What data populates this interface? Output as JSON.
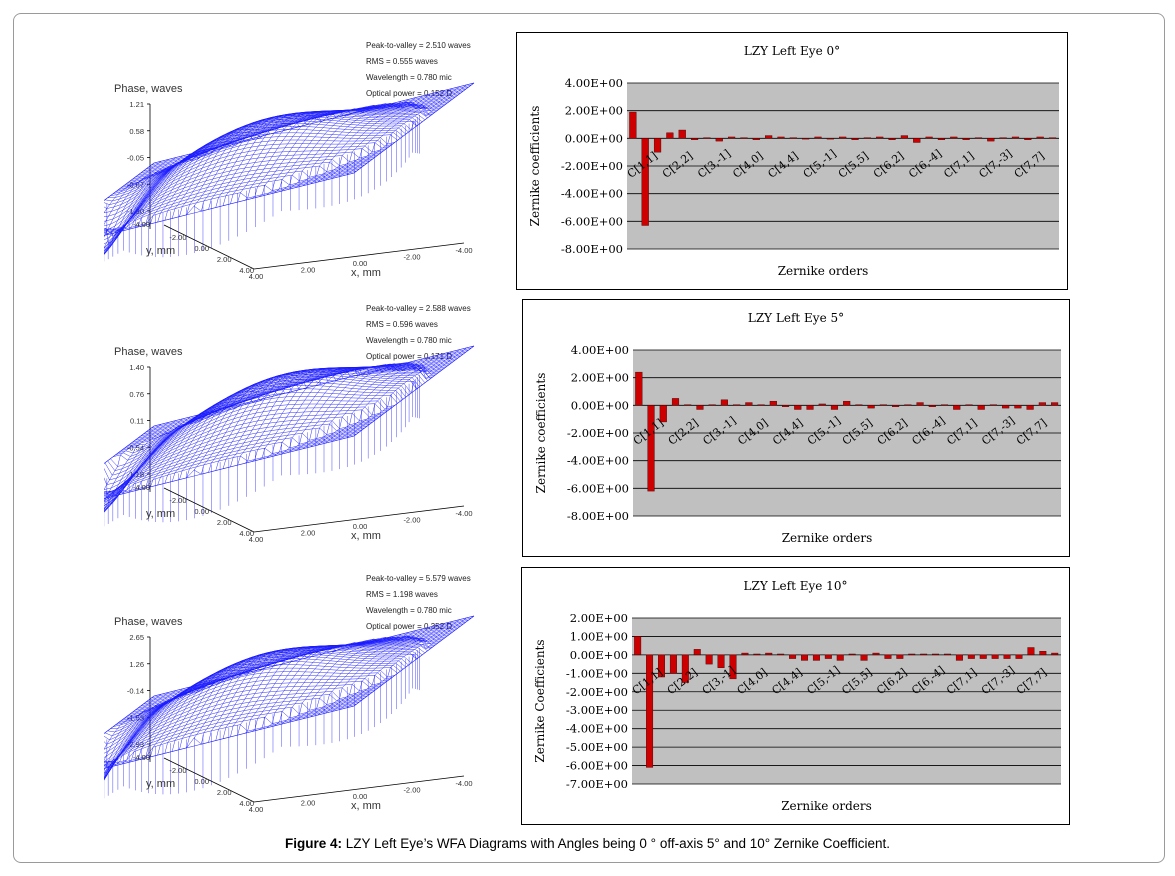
{
  "caption": {
    "label": "Figure 4:",
    "text": " LZY Left Eye’s WFA Diagrams with Angles being 0 ° off-axis 5° and 10° Zernike Coefficient."
  },
  "surfaces": [
    {
      "info": [
        "Peak-to-valley = 2.510 waves",
        "RMS = 0.555 waves",
        "Wavelength = 0.780 mic",
        "Optical power = 0.152 D"
      ],
      "zlabel": "Phase, waves",
      "zticks": [
        "1.21",
        "0.58",
        "-0.05",
        "-0.67",
        "-1.30"
      ],
      "yticks": [
        "-4.00",
        "-2.00",
        "0.00",
        "2.00",
        "4.00"
      ],
      "xticks": [
        "4.00",
        "2.00",
        "0.00",
        "-2.00",
        "-4.00"
      ],
      "ylabel": "y, mm",
      "xlabel": "x, mm"
    },
    {
      "info": [
        "Peak-to-valley = 2.588 waves",
        "RMS = 0.596 waves",
        "Wavelength = 0.780 mic",
        "Optical power = 0.171 D"
      ],
      "zlabel": "Phase, waves",
      "zticks": [
        "1.40",
        "0.76",
        "0.11",
        "-0.54",
        "-1.18"
      ],
      "yticks": [
        "-4.00",
        "-2.00",
        "0.00",
        "2.00",
        "4.00"
      ],
      "xticks": [
        "4.00",
        "2.00",
        "0.00",
        "-2.00",
        "-4.00"
      ],
      "ylabel": "y, mm",
      "xlabel": "x, mm"
    },
    {
      "info": [
        "Peak-to-valley = 5.579 waves",
        "RMS = 1.198 waves",
        "Wavelength = 0.780 mic",
        "Optical power = 0.352 D"
      ],
      "zlabel": "Phase, waves",
      "zticks": [
        "2.65",
        "1.26",
        "-0.14",
        "-1.53",
        "-2.93"
      ],
      "yticks": [
        "-4.00",
        "-2.00",
        "0.00",
        "2.00",
        "4.00"
      ],
      "xticks": [
        "4.00",
        "2.00",
        "0.00",
        "-2.00",
        "-4.00"
      ],
      "ylabel": "y, mm",
      "xlabel": "x, mm"
    }
  ],
  "chart_data": [
    {
      "type": "bar",
      "title": "LZY Left Eye 0°",
      "xlabel": "Zernike orders",
      "ylabel": "Zernike coefficients",
      "ylim": [
        -8,
        4
      ],
      "yticks": [
        "4.00E+00",
        "2.00E+00",
        "0.00E+00",
        "-2.00E+00",
        "-4.00E+00",
        "-6.00E+00",
        "-8.00E+00"
      ],
      "ytick_values": [
        4,
        2,
        0,
        -2,
        -4,
        -6,
        -8
      ],
      "grid": true,
      "bar_color": "#cc0000",
      "plot_bg": "#c0c0c0",
      "category_labels": [
        "C[1,1]",
        "C[2,2]",
        "C[3,-1]",
        "C[4,0]",
        "C[4,4]",
        "C[5,-1]",
        "C[5,5]",
        "C[6,2]",
        "C[6,-4]",
        "C[7,1]",
        "C[7,-3]",
        "C[7,7]"
      ],
      "values": [
        1.9,
        -6.3,
        -1.0,
        0.4,
        0.6,
        -0.1,
        0.05,
        -0.2,
        0.1,
        0.05,
        -0.1,
        0.2,
        0.1,
        0.05,
        -0.05,
        0.1,
        -0.05,
        0.1,
        -0.1,
        0.05,
        0.1,
        -0.1,
        0.2,
        -0.3,
        0.1,
        -0.1,
        0.1,
        -0.1,
        0.05,
        -0.2,
        0.05,
        0.1,
        -0.1,
        0.1,
        0.05
      ]
    },
    {
      "type": "bar",
      "title": "LZY Left Eye 5°",
      "xlabel": "Zernike orders",
      "ylabel": "Zernike coefficients",
      "ylim": [
        -8,
        4
      ],
      "yticks": [
        "4.00E+00",
        "2.00E+00",
        "0.00E+00",
        "-2.00E+00",
        "-4.00E+00",
        "-6.00E+00",
        "-8.00E+00"
      ],
      "ytick_values": [
        4,
        2,
        0,
        -2,
        -4,
        -6,
        -8
      ],
      "grid": true,
      "bar_color": "#cc0000",
      "plot_bg": "#c0c0c0",
      "category_labels": [
        "C[1,1]",
        "C[2,2]",
        "C[3,-1]",
        "C[4,0]",
        "C[4,4]",
        "C[5,-1]",
        "C[5,5]",
        "C[6,2]",
        "C[6,-4]",
        "C[7,1]",
        "C[7,-3]",
        "C[7,7]"
      ],
      "values": [
        2.4,
        -6.2,
        -1.2,
        0.5,
        0.05,
        -0.3,
        0.05,
        0.4,
        0.05,
        0.2,
        0.05,
        0.3,
        -0.1,
        -0.3,
        -0.3,
        0.1,
        -0.3,
        0.3,
        0.05,
        -0.2,
        0.05,
        -0.1,
        0.05,
        0.2,
        -0.1,
        0.05,
        -0.3,
        0.05,
        -0.3,
        0.05,
        -0.2,
        -0.2,
        -0.3,
        0.2,
        0.2
      ]
    },
    {
      "type": "bar",
      "title": "LZY Left Eye 10°",
      "xlabel": "Zernike orders",
      "ylabel": "Zernike Coefficients",
      "ylim": [
        -7,
        2
      ],
      "yticks": [
        "2.00E+00",
        "1.00E+00",
        "0.00E+00",
        "-1.00E+00",
        "-2.00E+00",
        "-3.00E+00",
        "-4.00E+00",
        "-5.00E+00",
        "-6.00E+00",
        "-7.00E+00"
      ],
      "ytick_values": [
        2,
        1,
        0,
        -1,
        -2,
        -3,
        -4,
        -5,
        -6,
        -7
      ],
      "grid": true,
      "bar_color": "#cc0000",
      "plot_bg": "#c0c0c0",
      "category_labels": [
        "C[1,1]",
        "C[2,2]",
        "C[3,-1]",
        "C[4,0]",
        "C[4,4]",
        "C[5,-1]",
        "C[5,5]",
        "C[6,2]",
        "C[6,-4]",
        "C[7,1]",
        "C[7,-3]",
        "C[7,7]"
      ],
      "values": [
        1.0,
        -6.1,
        -1.2,
        -1.0,
        -1.5,
        0.3,
        -0.5,
        -0.7,
        -1.3,
        0.1,
        0.05,
        0.1,
        0.05,
        -0.2,
        -0.3,
        -0.3,
        -0.2,
        -0.3,
        0.05,
        -0.3,
        0.1,
        -0.2,
        -0.2,
        0.05,
        0.05,
        0.05,
        0.05,
        -0.3,
        -0.2,
        -0.2,
        -0.2,
        -0.2,
        -0.2,
        0.4,
        0.2,
        0.1
      ]
    }
  ]
}
